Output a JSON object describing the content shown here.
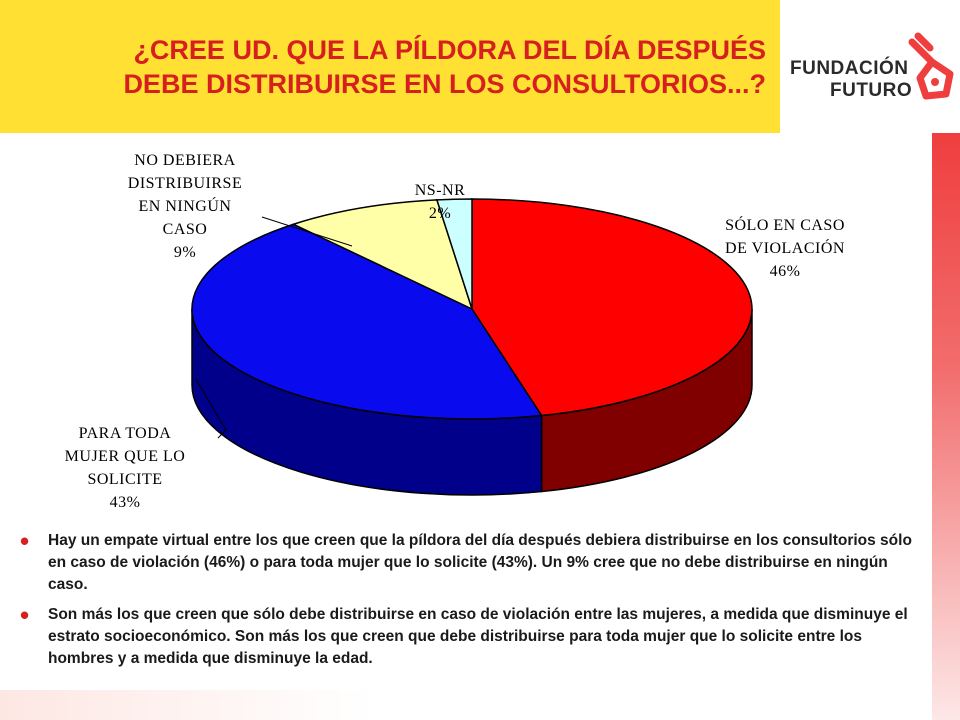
{
  "title": "¿CREE UD. QUE LA PÍLDORA DEL DÍA DESPUÉS\nDEBE DISTRIBUIRSE EN LOS CONSULTORIOS...?",
  "logo": {
    "line1": "FUNDACIÓN",
    "line2": "FUTURO"
  },
  "colors": {
    "title_bg": "#ffe033",
    "title_text": "#d61f1f",
    "accent": "#ef3e3e"
  },
  "chart_data": {
    "type": "pie",
    "style": "3d",
    "unit": "%",
    "slices": [
      {
        "label": "SÓLO EN CASO\nDE VIOLACIÓN",
        "value": 46,
        "display": "46%",
        "top_color": "#ff0000",
        "side_color": "#800000"
      },
      {
        "label": "PARA TODA\nMUJER QUE LO\nSOLICITE",
        "value": 43,
        "display": "43%",
        "top_color": "#0a0aee",
        "side_color": "#00008a"
      },
      {
        "label": "NO DEBIERA\nDISTRIBUIRSE\nEN NINGÚN\nCASO",
        "value": 9,
        "display": "9%",
        "top_color": "#ffffa8",
        "side_color": "#c8c870"
      },
      {
        "label": "NS-NR",
        "value": 2,
        "display": "2%",
        "top_color": "#ccffff",
        "side_color": "#88bbbb"
      }
    ]
  },
  "bullets": [
    "Hay un empate virtual entre los que creen que la píldora del día después debiera distribuirse en los consultorios sólo en caso de violación (46%) o para toda mujer que lo solicite (43%). Un 9% cree que no debe distribuirse en ningún caso.",
    "Son más los que creen que sólo debe distribuirse en caso de violación entre las mujeres, a medida que disminuye el estrato socioeconómico. Son más los que creen que debe distribuirse para toda mujer que lo solicite entre los hombres y a medida que disminuye la edad."
  ]
}
